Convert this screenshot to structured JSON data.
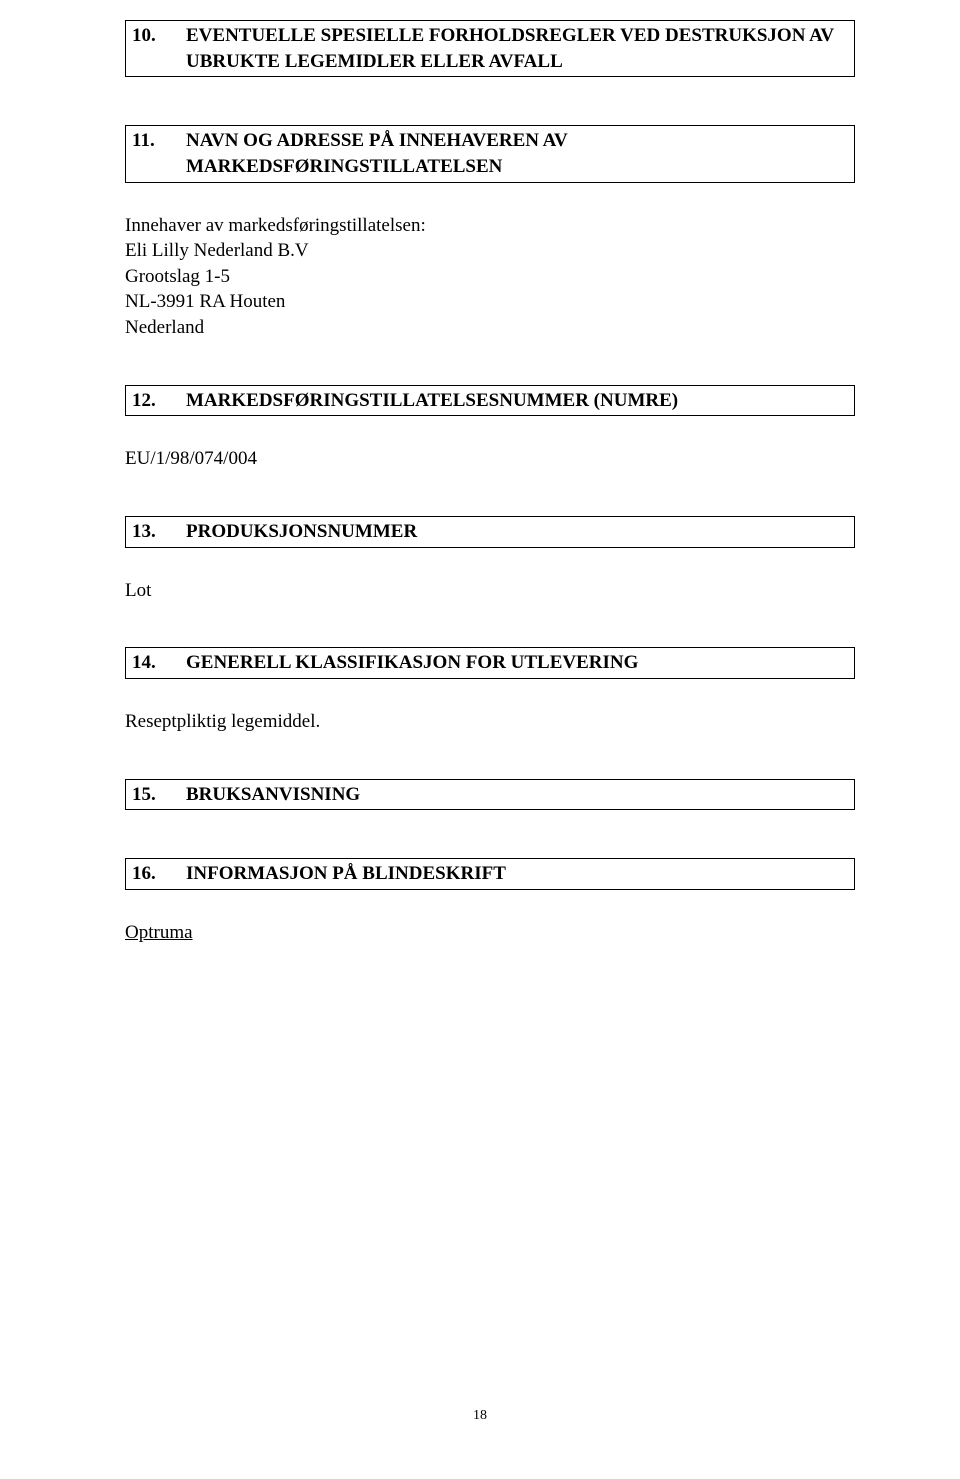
{
  "sections": {
    "s10": {
      "num": "10.",
      "title_l1": "EVENTUELLE SPESIELLE FORHOLDSREGLER VED DESTRUKSJON AV",
      "title_l2": "UBRUKTE LEGEMIDLER ELLER AVFALL"
    },
    "s11": {
      "num": "11.",
      "title": "NAVN OG ADRESSE PÅ INNEHAVEREN AV MARKEDSFØRINGSTILLATELSEN",
      "body_l1": "Innehaver av markedsføringstillatelsen:",
      "body_l2": "Eli Lilly Nederland B.V",
      "body_l3": "Grootslag 1-5",
      "body_l4": "NL-3991 RA Houten",
      "body_l5": "Nederland"
    },
    "s12": {
      "num": "12.",
      "title": "MARKEDSFØRINGSTILLATELSESNUMMER (NUMRE)",
      "body": "EU/1/98/074/004"
    },
    "s13": {
      "num": "13.",
      "title": "PRODUKSJONSNUMMER",
      "body": "Lot"
    },
    "s14": {
      "num": "14.",
      "title": "GENERELL KLASSIFIKASJON FOR UTLEVERING",
      "body": "Reseptpliktig legemiddel."
    },
    "s15": {
      "num": "15.",
      "title": "BRUKSANVISNING"
    },
    "s16": {
      "num": "16.",
      "title": "INFORMASJON PÅ BLINDESKRIFT",
      "body": "Optruma"
    }
  },
  "page_number": "18"
}
